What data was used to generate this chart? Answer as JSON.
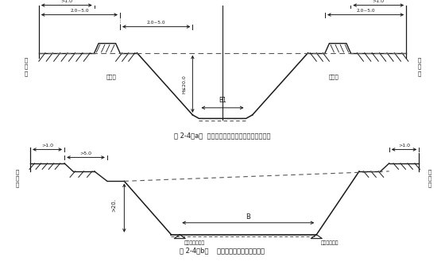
{
  "fig_width": 5.6,
  "fig_height": 3.29,
  "dpi": 100,
  "bg_color": "#ffffff",
  "line_color": "#1a1a1a",
  "dashed_color": "#555555",
  "caption_a": "图 2-4（a）  粘性土有弃土堆路堑标准设计断面图",
  "caption_b": "图 2-4（b）    无弃土堆路堑标准设计断面",
  "label_yudi_left": "用\n地\n界",
  "label_yudi_right": "用\n地\n界",
  "label_qitu": "弃土堆",
  "label_B1": "B1",
  "label_B": "B",
  "label_hs": "H≤20.0",
  "label_dim_1": ">1.0",
  "label_dim_25": "2.0~5.0",
  "label_dim_5": ">5.0",
  "label_20": ">20.",
  "label_zongduan": "纵断面路肩标高",
  "label_lujian": "路肩设计标高"
}
